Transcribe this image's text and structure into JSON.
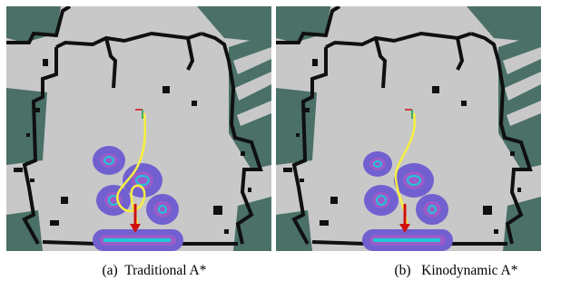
{
  "figure": {
    "panels": [
      {
        "id": "a",
        "caption": "(a)  Traditional A*",
        "path_type": "wavy"
      },
      {
        "id": "b",
        "caption": "(b)   Kinodynamic A*",
        "path_type": "smooth"
      }
    ]
  },
  "colors": {
    "free_space": "#c8c8c8",
    "unknown_space": "#4a7068",
    "wall": "#101010",
    "inflation": "#7060d0",
    "inflation_core": "#9a5cc8",
    "obstacle_center": "#20c8d8",
    "planned_path": "#f5f040",
    "goal_arrow": "#d01010"
  }
}
